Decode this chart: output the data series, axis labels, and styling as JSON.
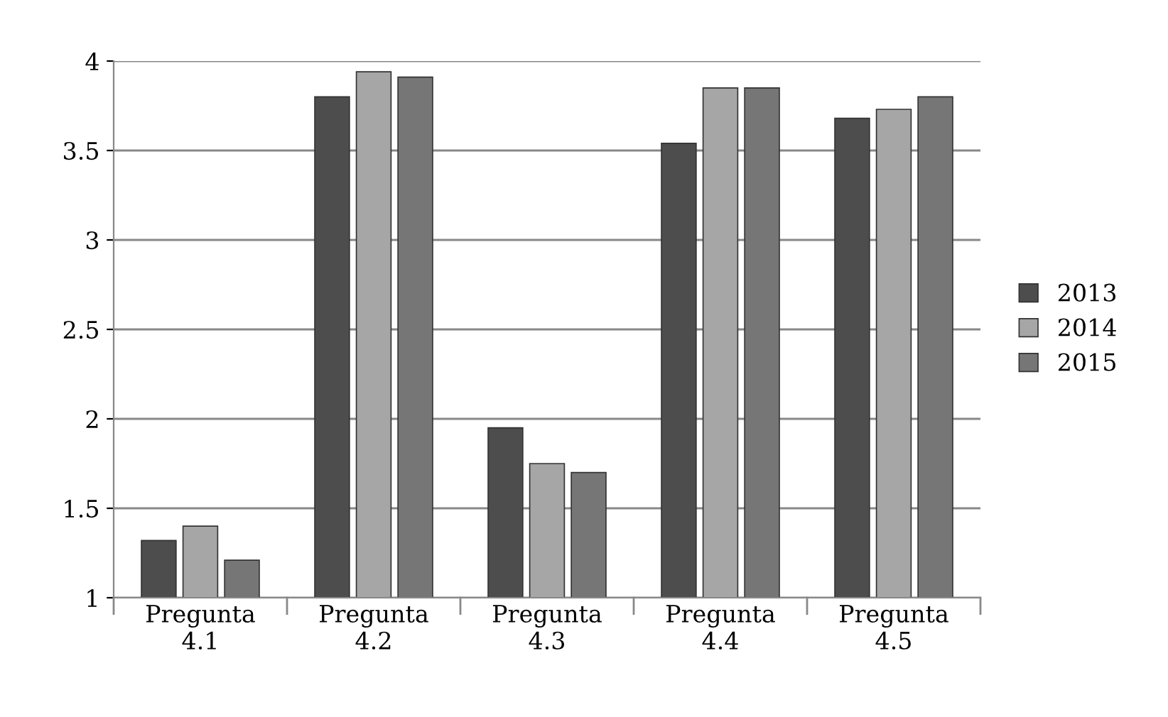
{
  "chart_data": {
    "type": "bar",
    "categories": [
      "Pregunta\n4.1",
      "Pregunta\n4.2",
      "Pregunta\n4.3",
      "Pregunta\n4.4",
      "Pregunta\n4.5"
    ],
    "series": [
      {
        "name": "2013",
        "color": "#4d4d4d",
        "values": [
          1.32,
          3.8,
          1.95,
          3.54,
          3.68
        ]
      },
      {
        "name": "2014",
        "color": "#a6a6a6",
        "values": [
          1.4,
          3.94,
          1.75,
          3.85,
          3.73
        ]
      },
      {
        "name": "2015",
        "color": "#767676",
        "values": [
          1.21,
          3.91,
          1.7,
          3.85,
          3.8
        ]
      }
    ],
    "ylim": [
      1,
      4
    ],
    "yticks": [
      1,
      1.5,
      2,
      2.5,
      3,
      3.5,
      4
    ],
    "grid": "y",
    "legend": "right"
  }
}
